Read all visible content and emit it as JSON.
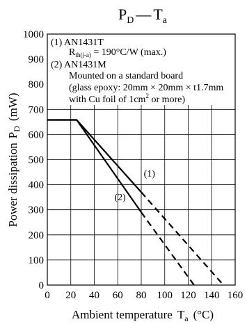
{
  "chart_data": {
    "type": "line",
    "title_main": "P",
    "title_main_sub": "D",
    "title_sep": "—",
    "title_second": "T",
    "title_second_sub": "a",
    "xlabel_main": "Ambient temperature",
    "xlabel_sym": "T",
    "xlabel_sub": "a",
    "xlabel_unit": "(°C)",
    "ylabel_main": "Power dissipation",
    "ylabel_sym": "P",
    "ylabel_sub": "D",
    "ylabel_unit": "(mW)",
    "xlim": [
      0,
      160
    ],
    "ylim": [
      0,
      1000
    ],
    "xticks": [
      0,
      20,
      40,
      60,
      80,
      100,
      120,
      140,
      160
    ],
    "yticks": [
      0,
      100,
      200,
      300,
      400,
      500,
      600,
      700,
      800,
      900,
      1000
    ],
    "grid": true,
    "legend": {
      "line1": "(1)  AN1431T",
      "line2_R": "R",
      "line2_sub": "th(j-a)",
      "line2_rest": " = 190°C/W (max.)",
      "line3": "(2)  AN1431M",
      "line4": "Mounted on a standard board",
      "line5": "(glass epoxy: 20mm × 20mm × t1.7mm",
      "line6_a": "with Cu foil of 1cm",
      "line6_sup": "2",
      "line6_b": " or more)"
    },
    "series": [
      {
        "name": "(1)",
        "solid": {
          "x": [
            0,
            25,
            80
          ],
          "y": [
            658,
            658,
            370
          ]
        },
        "dashed": {
          "x": [
            80,
            150
          ],
          "y": [
            370,
            0
          ]
        }
      },
      {
        "name": "(2)",
        "solid": {
          "x": [
            0,
            25,
            80
          ],
          "y": [
            658,
            658,
            290
          ]
        },
        "dashed": {
          "x": [
            80,
            125
          ],
          "y": [
            290,
            0
          ]
        }
      }
    ],
    "curve_labels": [
      {
        "text": "(1)",
        "x": 87,
        "y": 432
      },
      {
        "text": "(2)",
        "x": 62,
        "y": 338
      }
    ]
  }
}
